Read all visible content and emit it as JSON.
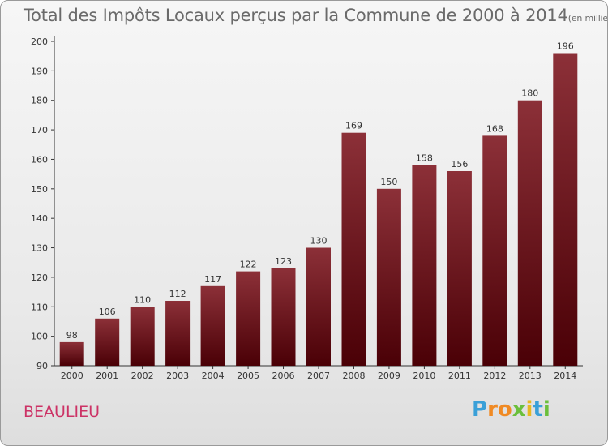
{
  "title": "Total des Impôts Locaux perçus par la Commune de 2000 à 2014",
  "unit": "(en milliers d'€)",
  "commune": "BEAULIEU",
  "logo": {
    "letters": [
      "P",
      "r",
      "o",
      "x",
      "i",
      "t",
      "i"
    ],
    "colors": [
      "#3aa0d8",
      "#f08a24",
      "#f08a24",
      "#6bbf3b",
      "#e8b820",
      "#3aa0d8",
      "#6bbf3b"
    ]
  },
  "colors": {
    "bar_top": "#8c3038",
    "bar_bottom": "#4a0006",
    "title": "#6a6a6a",
    "commune": "#cc3366"
  },
  "chart_data": {
    "type": "bar",
    "title": "Total des Impôts Locaux perçus par la Commune de 2000 à 2014",
    "xlabel": "",
    "ylabel": "",
    "categories": [
      "2000",
      "2001",
      "2002",
      "2003",
      "2004",
      "2005",
      "2006",
      "2007",
      "2008",
      "2009",
      "2010",
      "2011",
      "2012",
      "2013",
      "2014"
    ],
    "values": [
      98,
      106,
      110,
      112,
      117,
      122,
      123,
      130,
      169,
      150,
      158,
      156,
      168,
      180,
      196
    ],
    "ylim": [
      90,
      200
    ],
    "yticks": [
      90,
      100,
      110,
      120,
      130,
      140,
      150,
      160,
      170,
      180,
      190,
      200
    ],
    "grid": false,
    "legend": "none"
  }
}
